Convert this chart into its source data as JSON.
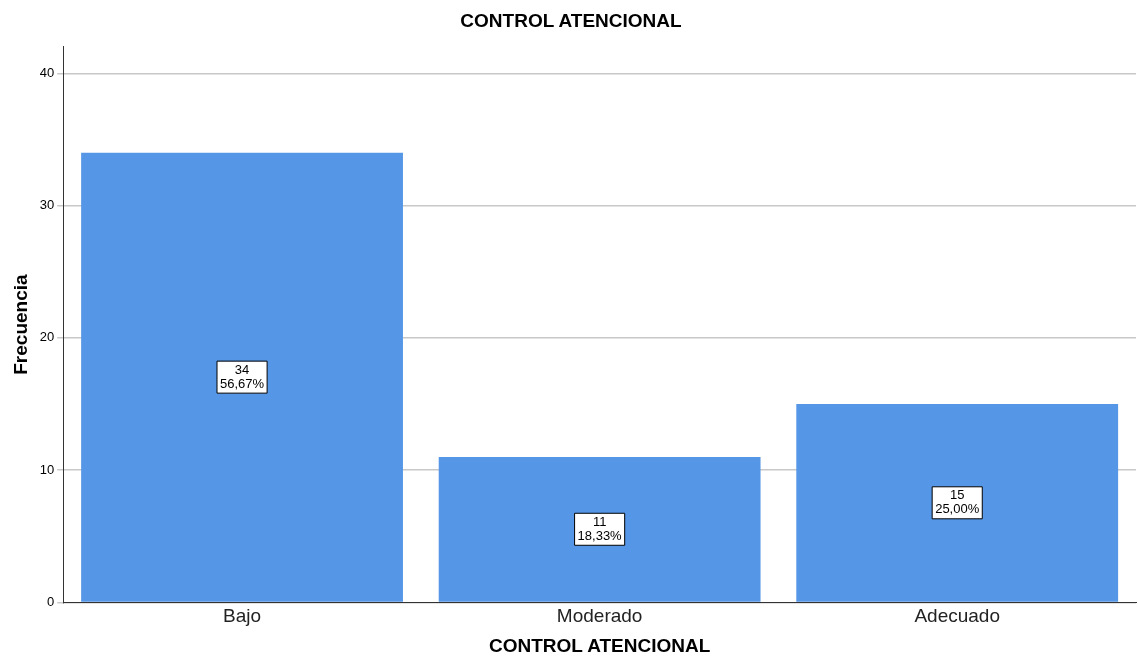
{
  "chart_data": {
    "type": "bar",
    "title": "CONTROL ATENCIONAL",
    "xlabel": "CONTROL ATENCIONAL",
    "ylabel": "Frecuencia",
    "categories": [
      "Bajo",
      "Moderado",
      "Adecuado"
    ],
    "values": [
      34,
      11,
      15
    ],
    "color": "#5596e6",
    "value_labels": [
      "34\n56,67%",
      "11\n18,33%",
      "15\n25,00%"
    ],
    "ylim": [
      0,
      42
    ],
    "yticks": [
      0,
      10,
      20,
      30,
      40
    ],
    "grid": "y",
    "legend": false
  }
}
